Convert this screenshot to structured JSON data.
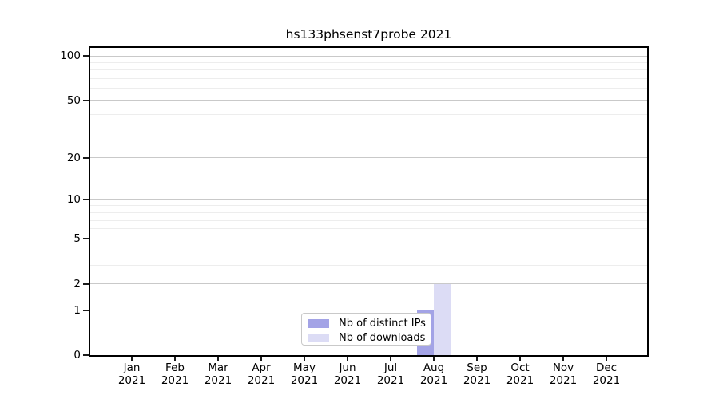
{
  "title": "hs133phsenst7probe 2021",
  "chart_data": {
    "type": "bar",
    "title": "hs133phsenst7probe 2021",
    "categories": [
      "Jan 2021",
      "Feb 2021",
      "Mar 2021",
      "Apr 2021",
      "May 2021",
      "Jun 2021",
      "Jul 2021",
      "Aug 2021",
      "Sep 2021",
      "Oct 2021",
      "Nov 2021",
      "Dec 2021"
    ],
    "series": [
      {
        "name": "Nb of distinct IPs",
        "color": "#a3a3e6",
        "values": [
          0,
          0,
          0,
          0,
          0,
          0,
          0,
          1,
          0,
          0,
          0,
          0
        ]
      },
      {
        "name": "Nb of downloads",
        "color": "#dcdcf5",
        "values": [
          0,
          0,
          0,
          0,
          0,
          0,
          0,
          2,
          0,
          0,
          0,
          0
        ]
      }
    ],
    "xlabel": "",
    "ylabel": "",
    "ylim": [
      0,
      100
    ],
    "yscale": "log10(1+v)",
    "yticks": [
      0,
      1,
      2,
      5,
      10,
      20,
      50,
      100
    ],
    "minor_gridlines": [
      3,
      4,
      6,
      7,
      8,
      9,
      30,
      40,
      60,
      70,
      80,
      90
    ],
    "grid": "on",
    "legend": {
      "position": "inside-bottom-center",
      "items": [
        "Nb of distinct IPs",
        "Nb of downloads"
      ]
    }
  },
  "colors": {
    "distinct_ips_bar": "#a3a3e6",
    "downloads_bar": "#dcdcf5",
    "grid_major": "#c9c9c9",
    "grid_minor": "#ededed",
    "axis": "#000000",
    "background": "#ffffff"
  }
}
